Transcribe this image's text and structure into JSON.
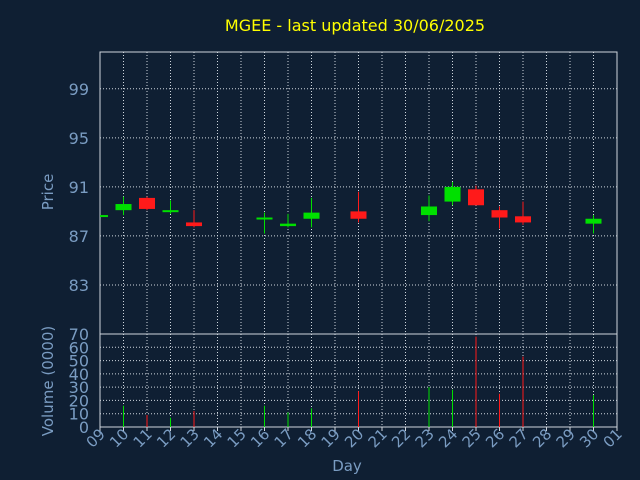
{
  "chart_data": {
    "type": "candlestick",
    "title": "MGEE - last updated 30/06/2025",
    "xlabel": "Day",
    "ylabel": "Price",
    "volume_label": "Volume (0000)",
    "grid": true,
    "colors": {
      "background": "#0f1f33",
      "title": "#ffff00",
      "axis_text": "#7a9cc2",
      "grid": "#cfd6de",
      "up": "#00e000",
      "down": "#ff1a1a"
    },
    "x_ticks": [
      "09",
      "10",
      "11",
      "12",
      "13",
      "14",
      "15",
      "16",
      "17",
      "18",
      "19",
      "20",
      "21",
      "22",
      "23",
      "24",
      "25",
      "26",
      "27",
      "28",
      "29",
      "30",
      "01"
    ],
    "price_axis": {
      "ylim": [
        79,
        102
      ],
      "ticks": [
        83,
        87,
        91,
        95,
        99
      ]
    },
    "volume_axis": {
      "ylim": [
        0,
        70
      ],
      "ticks": [
        0,
        10,
        20,
        30,
        40,
        50,
        60,
        70
      ]
    },
    "candles": [
      {
        "day": "09",
        "open": 88.7,
        "close": 88.7,
        "high": 88.7,
        "low": 88.7,
        "volume": 0
      },
      {
        "day": "10",
        "open": 89.1,
        "close": 89.6,
        "high": 90.2,
        "low": 88.7,
        "volume": 16
      },
      {
        "day": "11",
        "open": 90.1,
        "close": 89.2,
        "high": 90.2,
        "low": 89.1,
        "volume": 9
      },
      {
        "day": "12",
        "open": 89.0,
        "close": 89.1,
        "high": 89.9,
        "low": 88.8,
        "volume": 7
      },
      {
        "day": "13",
        "open": 88.1,
        "close": 87.8,
        "high": 89.1,
        "low": 87.7,
        "volume": 12
      },
      {
        "day": "16",
        "open": 88.4,
        "close": 88.5,
        "high": 88.9,
        "low": 87.2,
        "volume": 16
      },
      {
        "day": "17",
        "open": 87.8,
        "close": 88.0,
        "high": 88.8,
        "low": 87.7,
        "volume": 11
      },
      {
        "day": "18",
        "open": 88.4,
        "close": 88.9,
        "high": 90.1,
        "low": 87.7,
        "volume": 14
      },
      {
        "day": "20",
        "open": 89.0,
        "close": 88.4,
        "high": 90.6,
        "low": 88.1,
        "volume": 27
      },
      {
        "day": "23",
        "open": 88.7,
        "close": 89.4,
        "high": 90.3,
        "low": 88.2,
        "volume": 30
      },
      {
        "day": "24",
        "open": 89.8,
        "close": 91.0,
        "high": 91.4,
        "low": 89.5,
        "volume": 28
      },
      {
        "day": "25",
        "open": 90.8,
        "close": 89.5,
        "high": 91.1,
        "low": 89.5,
        "volume": 68
      },
      {
        "day": "26",
        "open": 89.1,
        "close": 88.5,
        "high": 89.4,
        "low": 87.6,
        "volume": 25
      },
      {
        "day": "27",
        "open": 88.6,
        "close": 88.1,
        "high": 89.8,
        "low": 87.9,
        "volume": 53
      },
      {
        "day": "30",
        "open": 88.0,
        "close": 88.4,
        "high": 88.7,
        "low": 87.2,
        "volume": 24
      }
    ]
  }
}
